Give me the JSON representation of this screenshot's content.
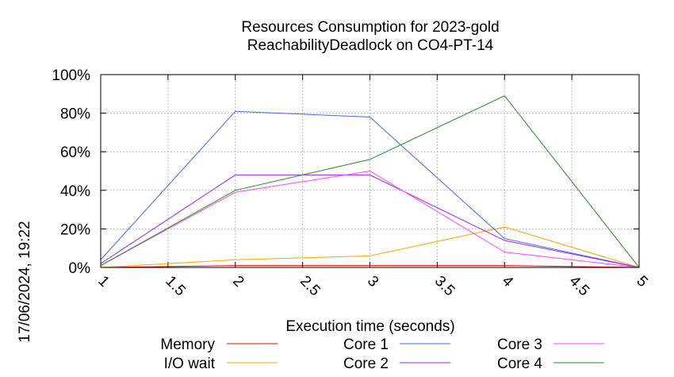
{
  "chart_data": {
    "type": "line",
    "title_line1": "Resources Consumption for 2023-gold",
    "title_line2": "ReachabilityDeadlock on CO4-PT-14",
    "xlabel": "Execution time (seconds)",
    "ylabel": "",
    "timestamp": "17/06/2024, 19:22",
    "xlim": [
      1,
      5
    ],
    "ylim": [
      0,
      100
    ],
    "grid": true,
    "legend_position": "bottom",
    "x_ticks": [
      "1",
      "1.5",
      "2",
      "2.5",
      "3",
      "3.5",
      "4",
      "4.5",
      "5"
    ],
    "y_ticks": [
      "0%",
      "20%",
      "40%",
      "60%",
      "80%",
      "100%"
    ],
    "series": [
      {
        "name": "Memory",
        "color": "#ff0000",
        "x": [
          1,
          2,
          3,
          4,
          5
        ],
        "y": [
          0,
          1,
          1,
          1,
          0
        ]
      },
      {
        "name": "I/O wait",
        "color": "#ffa500",
        "x": [
          1,
          2,
          3,
          4,
          5
        ],
        "y": [
          0,
          4,
          6,
          21,
          0
        ]
      },
      {
        "name": "Core 1",
        "color": "#4169e1",
        "x": [
          1,
          2,
          3,
          4,
          5
        ],
        "y": [
          4,
          81,
          78,
          15,
          0
        ]
      },
      {
        "name": "Core 2",
        "color": "#a020f0",
        "x": [
          1,
          2,
          3,
          4,
          5
        ],
        "y": [
          2,
          48,
          48,
          14,
          0
        ]
      },
      {
        "name": "Core 3",
        "color": "#ff44ff",
        "x": [
          1,
          2,
          3,
          4,
          5
        ],
        "y": [
          1,
          39,
          50,
          8,
          0
        ]
      },
      {
        "name": "Core 4",
        "color": "#228b22",
        "x": [
          1,
          2,
          3,
          4,
          5
        ],
        "y": [
          1,
          40,
          56,
          89,
          0
        ]
      }
    ]
  }
}
